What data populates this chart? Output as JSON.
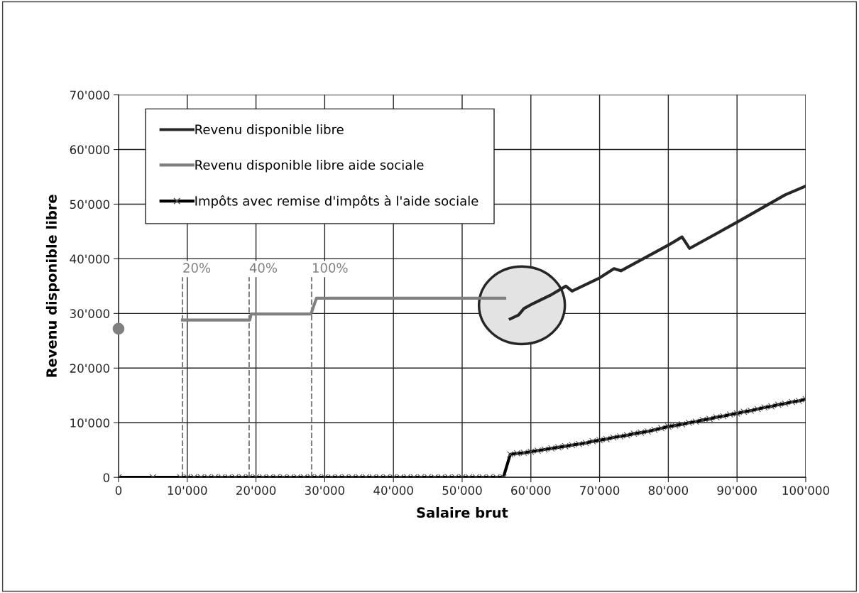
{
  "chart_data": {
    "type": "line",
    "xlabel": "Salaire brut",
    "ylabel": "Revenu disponible libre",
    "xlim": [
      0,
      100000
    ],
    "ylim": [
      0,
      70000
    ],
    "xticks": [
      0,
      {
        "value": 10000,
        "label": "10'000"
      },
      {
        "value": 20000,
        "label": "20'000"
      },
      {
        "value": 30000,
        "label": "30'000"
      },
      {
        "value": 40000,
        "label": "40'000"
      },
      {
        "value": 50000,
        "label": "50'000"
      },
      {
        "value": 60000,
        "label": "60'000"
      },
      {
        "value": 70000,
        "label": "70'000"
      },
      {
        "value": 80000,
        "label": "80'000"
      },
      {
        "value": 90000,
        "label": "90'000"
      },
      {
        "value": 100000,
        "label": "100'000"
      }
    ],
    "yticks": [
      0,
      {
        "value": 10000,
        "label": "10'000"
      },
      {
        "value": 20000,
        "label": "20'000"
      },
      {
        "value": 30000,
        "label": "30'000"
      },
      {
        "value": 40000,
        "label": "40'000"
      },
      {
        "value": 50000,
        "label": "50'000"
      },
      {
        "value": 60000,
        "label": "60'000"
      },
      {
        "value": 70000,
        "label": "70'000"
      }
    ],
    "grid": true,
    "legend": "top left",
    "series": [
      {
        "name": "Revenu disponible libre",
        "color": "#262626",
        "marker": "none",
        "x": [
          57000,
          58200,
          59000,
          60300,
          62800,
          65100,
          66000,
          70000,
          72100,
          73100,
          80000,
          82000,
          83100,
          90000,
          97000,
          100000
        ],
        "values": [
          29000,
          29700,
          30900,
          31800,
          33300,
          35000,
          34100,
          36500,
          38200,
          37800,
          42500,
          44000,
          41900,
          46700,
          51700,
          53300
        ]
      },
      {
        "name": "Revenu disponible libre aide sociale",
        "color": "#808080",
        "marker": "none",
        "x": [
          9300,
          19100,
          19300,
          28000,
          28800,
          56200
        ],
        "values": [
          28800,
          28800,
          29900,
          29900,
          32800,
          32800
        ]
      },
      {
        "name": "Impôts avec remise d'impôts à l'aide sociale",
        "color": "#000000",
        "marker": "cross",
        "x": [
          0,
          5000,
          9000,
          10000,
          11000,
          12000,
          13000,
          14000,
          15000,
          16000,
          17000,
          18000,
          19000,
          20000,
          21000,
          22000,
          23000,
          24000,
          25000,
          26000,
          27000,
          28000,
          29000,
          30000,
          31000,
          32000,
          33000,
          34000,
          35000,
          36000,
          37000,
          38000,
          39000,
          40000,
          41000,
          42000,
          43000,
          44000,
          45000,
          46000,
          47000,
          48000,
          49000,
          50000,
          51000,
          52000,
          53000,
          54000,
          55000,
          56000,
          57000,
          58000,
          59000,
          60000,
          61000,
          62000,
          63000,
          64000,
          65000,
          66000,
          67000,
          68000,
          69000,
          70000,
          71000,
          72000,
          73000,
          74000,
          75000,
          76000,
          77000,
          78000,
          79000,
          80000,
          81000,
          82000,
          83000,
          84000,
          85000,
          86000,
          87000,
          88000,
          89000,
          90000,
          91000,
          92000,
          93000,
          94000,
          95000,
          96000,
          97000,
          98000,
          99000,
          100000
        ],
        "values": [
          0,
          0,
          0,
          0,
          0,
          0,
          0,
          0,
          0,
          0,
          0,
          0,
          0,
          0,
          0,
          0,
          0,
          0,
          0,
          0,
          0,
          0,
          0,
          0,
          0,
          0,
          0,
          0,
          0,
          0,
          0,
          0,
          0,
          0,
          0,
          0,
          0,
          0,
          0,
          0,
          0,
          0,
          0,
          0,
          0,
          0,
          0,
          0,
          0,
          0,
          4200,
          4400,
          4500,
          4700,
          4900,
          5100,
          5300,
          5500,
          5700,
          5900,
          6100,
          6300,
          6600,
          6800,
          7000,
          7300,
          7500,
          7700,
          8000,
          8200,
          8400,
          8700,
          9000,
          9300,
          9500,
          9700,
          10000,
          10200,
          10500,
          10700,
          11000,
          11200,
          11500,
          11700,
          12000,
          12200,
          12500,
          12800,
          13000,
          13300,
          13500,
          13800,
          14000,
          14300
        ]
      },
      {
        "type": "scatter",
        "color": "#808080",
        "marker": "circle",
        "x": [
          0
        ],
        "values": [
          27200
        ]
      }
    ],
    "ref_lines": [
      {
        "axis": "x",
        "value": 9300,
        "color": "#808080",
        "line_style": "dashed"
      },
      {
        "axis": "x",
        "value": 19000,
        "color": "#808080",
        "line_style": "dashed"
      },
      {
        "axis": "x",
        "value": 28100,
        "color": "#808080",
        "line_style": "dashed"
      }
    ],
    "annotations": [
      {
        "text": "20%",
        "x": 9300,
        "y": 37000
      },
      {
        "text": "40%",
        "x": 19000,
        "y": 37000
      },
      {
        "text": "100%",
        "x": 28100,
        "y": 37000
      }
    ]
  }
}
